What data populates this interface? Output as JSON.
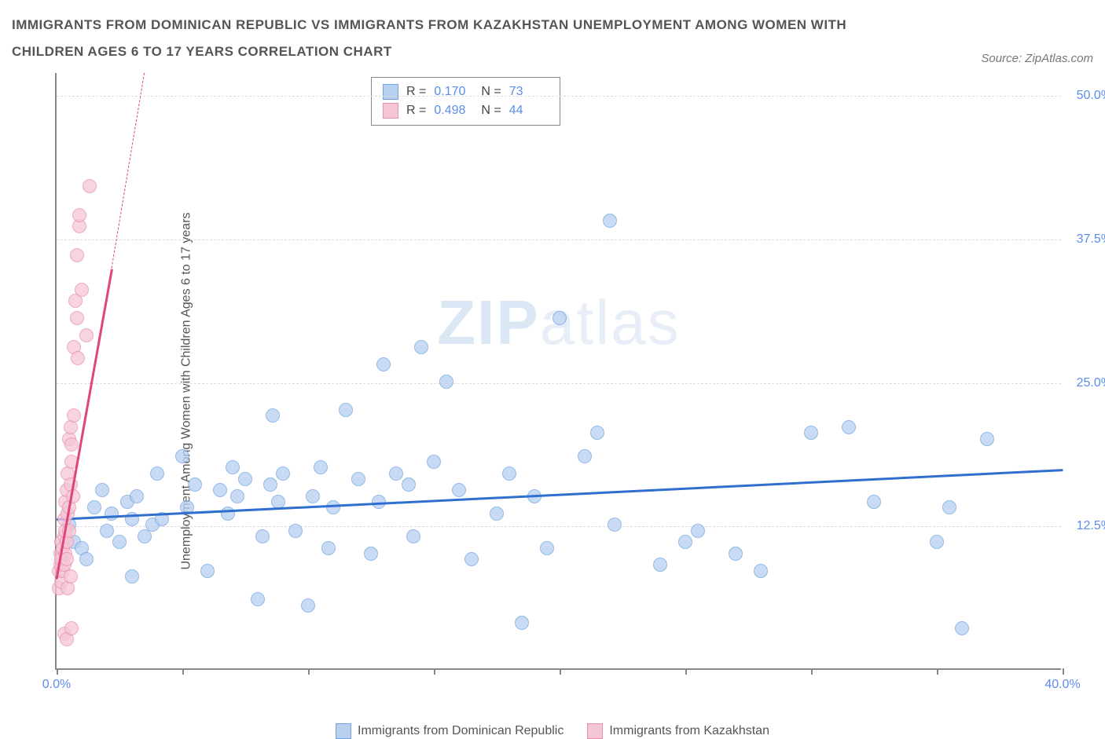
{
  "title": "IMMIGRANTS FROM DOMINICAN REPUBLIC VS IMMIGRANTS FROM KAZAKHSTAN UNEMPLOYMENT AMONG WOMEN WITH CHILDREN AGES 6 TO 17 YEARS CORRELATION CHART",
  "source_label": "Source:",
  "source_value": "ZipAtlas.com",
  "ylabel": "Unemployment Among Women with Children Ages 6 to 17 years",
  "watermark_a": "ZIP",
  "watermark_b": "atlas",
  "chart": {
    "type": "scatter",
    "xlim": [
      0,
      40
    ],
    "ylim": [
      0,
      52
    ],
    "xtick_positions": [
      0,
      5,
      10,
      15,
      20,
      25,
      30,
      35,
      40
    ],
    "xtick_labels": {
      "0": "0.0%",
      "40": "40.0%"
    },
    "ytick_positions": [
      12.5,
      25.0,
      37.5,
      50.0
    ],
    "ytick_labels": [
      "12.5%",
      "25.0%",
      "37.5%",
      "50.0%"
    ],
    "grid_color": "#dddddd",
    "axis_color": "#888888",
    "label_color": "#5b8def",
    "background_color": "#ffffff"
  },
  "series": [
    {
      "name": "Immigrants from Dominican Republic",
      "color_fill": "#b8d0f0",
      "color_stroke": "#6fa3e0",
      "trend_color": "#2f6fd0",
      "R": "0.170",
      "N": "73",
      "trend": {
        "x1": 0,
        "y1": 13.2,
        "x2": 40,
        "y2": 17.5
      },
      "points": [
        [
          0.5,
          12.5
        ],
        [
          0.7,
          11.0
        ],
        [
          1.0,
          10.5
        ],
        [
          1.2,
          9.5
        ],
        [
          1.5,
          14.0
        ],
        [
          1.8,
          15.5
        ],
        [
          2.0,
          12.0
        ],
        [
          2.2,
          13.5
        ],
        [
          2.5,
          11.0
        ],
        [
          2.8,
          14.5
        ],
        [
          3.0,
          8.0
        ],
        [
          3.0,
          13.0
        ],
        [
          3.2,
          15.0
        ],
        [
          3.5,
          11.5
        ],
        [
          3.8,
          12.5
        ],
        [
          4.0,
          17.0
        ],
        [
          4.2,
          13.0
        ],
        [
          5.0,
          18.5
        ],
        [
          5.2,
          14.0
        ],
        [
          5.5,
          16.0
        ],
        [
          6.0,
          8.5
        ],
        [
          6.5,
          15.5
        ],
        [
          6.8,
          13.5
        ],
        [
          7.0,
          17.5
        ],
        [
          7.2,
          15.0
        ],
        [
          7.5,
          16.5
        ],
        [
          8.0,
          6.0
        ],
        [
          8.2,
          11.5
        ],
        [
          8.5,
          16.0
        ],
        [
          8.6,
          22.0
        ],
        [
          8.8,
          14.5
        ],
        [
          9.0,
          17.0
        ],
        [
          9.5,
          12.0
        ],
        [
          10.0,
          5.5
        ],
        [
          10.2,
          15.0
        ],
        [
          10.5,
          17.5
        ],
        [
          10.8,
          10.5
        ],
        [
          11.0,
          14.0
        ],
        [
          11.5,
          22.5
        ],
        [
          12.0,
          16.5
        ],
        [
          12.5,
          10.0
        ],
        [
          12.8,
          14.5
        ],
        [
          13.0,
          26.5
        ],
        [
          13.5,
          17.0
        ],
        [
          14.0,
          16.0
        ],
        [
          14.2,
          11.5
        ],
        [
          14.5,
          28.0
        ],
        [
          15.0,
          18.0
        ],
        [
          15.5,
          25.0
        ],
        [
          16.0,
          15.5
        ],
        [
          16.5,
          9.5
        ],
        [
          17.5,
          13.5
        ],
        [
          18.0,
          17.0
        ],
        [
          18.5,
          4.0
        ],
        [
          19.0,
          15.0
        ],
        [
          19.5,
          10.5
        ],
        [
          20.0,
          30.5
        ],
        [
          21.0,
          18.5
        ],
        [
          21.5,
          20.5
        ],
        [
          22.0,
          39.0
        ],
        [
          22.2,
          12.5
        ],
        [
          24.0,
          9.0
        ],
        [
          25.0,
          11.0
        ],
        [
          25.5,
          12.0
        ],
        [
          27.0,
          10.0
        ],
        [
          28.0,
          8.5
        ],
        [
          30.0,
          20.5
        ],
        [
          31.5,
          21.0
        ],
        [
          32.5,
          14.5
        ],
        [
          35.0,
          11.0
        ],
        [
          35.5,
          14.0
        ],
        [
          36.0,
          3.5
        ],
        [
          37.0,
          20.0
        ]
      ]
    },
    {
      "name": "Immigrants from Kazakhstan",
      "color_fill": "#f5c6d6",
      "color_stroke": "#e88fb0",
      "trend_color": "#e0457a",
      "R": "0.498",
      "N": "44",
      "trend": {
        "x1": 0,
        "y1": 8.0,
        "x2": 2.2,
        "y2": 35.0
      },
      "trend_dash": {
        "x1": 2.2,
        "y1": 35.0,
        "x2": 3.5,
        "y2": 52.0
      },
      "points": [
        [
          0.1,
          7.0
        ],
        [
          0.1,
          8.5
        ],
        [
          0.15,
          9.0
        ],
        [
          0.15,
          10.0
        ],
        [
          0.2,
          7.5
        ],
        [
          0.2,
          9.5
        ],
        [
          0.2,
          11.0
        ],
        [
          0.25,
          8.5
        ],
        [
          0.25,
          10.5
        ],
        [
          0.3,
          9.0
        ],
        [
          0.3,
          11.5
        ],
        [
          0.3,
          13.0
        ],
        [
          0.35,
          10.0
        ],
        [
          0.35,
          12.0
        ],
        [
          0.35,
          14.5
        ],
        [
          0.4,
          9.5
        ],
        [
          0.4,
          11.0
        ],
        [
          0.4,
          15.5
        ],
        [
          0.45,
          13.5
        ],
        [
          0.45,
          17.0
        ],
        [
          0.5,
          12.0
        ],
        [
          0.5,
          14.0
        ],
        [
          0.5,
          20.0
        ],
        [
          0.55,
          16.0
        ],
        [
          0.55,
          21.0
        ],
        [
          0.6,
          18.0
        ],
        [
          0.6,
          19.5
        ],
        [
          0.65,
          15.0
        ],
        [
          0.7,
          22.0
        ],
        [
          0.7,
          28.0
        ],
        [
          0.75,
          32.0
        ],
        [
          0.8,
          30.5
        ],
        [
          0.8,
          36.0
        ],
        [
          0.85,
          27.0
        ],
        [
          0.9,
          38.5
        ],
        [
          0.9,
          39.5
        ],
        [
          1.0,
          33.0
        ],
        [
          1.2,
          29.0
        ],
        [
          1.3,
          42.0
        ],
        [
          0.3,
          3.0
        ],
        [
          0.4,
          2.5
        ],
        [
          0.6,
          3.5
        ],
        [
          0.45,
          7.0
        ],
        [
          0.55,
          8.0
        ]
      ]
    }
  ],
  "stats_labels": {
    "R": "R =",
    "N": "N ="
  }
}
